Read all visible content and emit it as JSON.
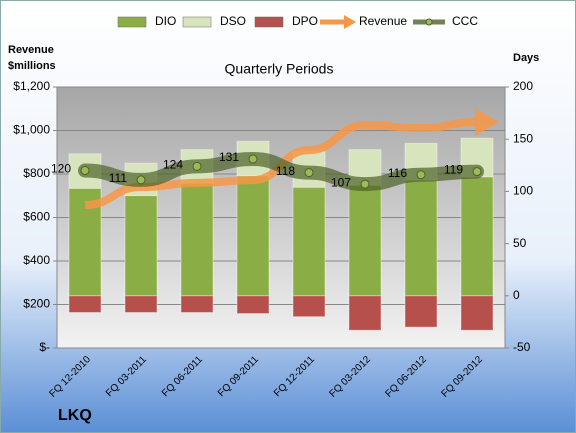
{
  "chart_data": {
    "type": "bar",
    "title": "Quarterly Periods",
    "y_label": "Revenue $millions",
    "y2_label": "Days",
    "caption": "LKQ",
    "categories": [
      "FQ 12-2010",
      "FQ 03-2011",
      "FQ 06-2011",
      "FQ 09-2011",
      "FQ 12-2011",
      "FQ 03-2012",
      "FQ 06-2012",
      "FQ 09-2012"
    ],
    "series": [
      {
        "name": "DIO",
        "type": "bar",
        "axis": "y2",
        "color": "#8aae45",
        "values": [
          103,
          96,
          108,
          115,
          104,
          106,
          111,
          114
        ]
      },
      {
        "name": "DSO",
        "type": "bar",
        "axis": "y2",
        "color": "#d7e4bd",
        "values": [
          33,
          31,
          32,
          33,
          34,
          34,
          35,
          37
        ]
      },
      {
        "name": "DPO",
        "type": "bar",
        "axis": "y2",
        "color": "#b6504d",
        "values": [
          -16,
          -16,
          -16,
          -17,
          -20,
          -33,
          -30,
          -33
        ]
      },
      {
        "name": "Revenue",
        "type": "line",
        "axis": "y",
        "color": "#f79646",
        "values": [
          657,
          740,
          759,
          772,
          910,
          1025,
          1011,
          1039
        ]
      },
      {
        "name": "CCC",
        "type": "line",
        "axis": "y2",
        "color": "#4f6228",
        "values": [
          120,
          111,
          124,
          131,
          118,
          107,
          116,
          119
        ]
      }
    ],
    "ylim": [
      0,
      1200
    ],
    "yticks": [
      {
        "value": 0,
        "label": "$-"
      },
      {
        "value": 200,
        "label": "$200"
      },
      {
        "value": 400,
        "label": "$400"
      },
      {
        "value": 600,
        "label": "$600"
      },
      {
        "value": 800,
        "label": "$800"
      },
      {
        "value": 1000,
        "label": "$1,000"
      },
      {
        "value": 1200,
        "label": "$1,200"
      }
    ],
    "y2lim": [
      -50,
      200
    ],
    "y2ticks": [
      -50,
      0,
      50,
      100,
      150,
      200
    ],
    "grid": true
  }
}
